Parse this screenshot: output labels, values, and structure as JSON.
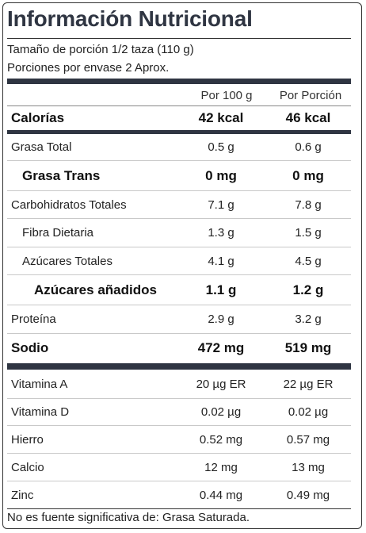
{
  "title": "Información Nutricional",
  "serving_size": "Tamaño de porción 1/2 taza (110 g)",
  "servings_per_container": "Porciones por envase 2 Aprox.",
  "headers": {
    "per_100g": "Por 100 g",
    "per_serving": "Por Porción"
  },
  "calories": {
    "label": "Calorías",
    "per_100g": "42 kcal",
    "per_serving": "46 kcal"
  },
  "nutrients": [
    {
      "label": "Grasa Total",
      "per_100g": "0.5 g",
      "per_serving": "0.6 g"
    },
    {
      "label": "Grasa Trans",
      "per_100g": "0 mg",
      "per_serving": "0 mg"
    },
    {
      "label": "Carbohidratos Totales",
      "per_100g": "7.1 g",
      "per_serving": "7.8 g"
    },
    {
      "label": "Fibra Dietaria",
      "per_100g": "1.3 g",
      "per_serving": "1.5 g"
    },
    {
      "label": "Azúcares Totales",
      "per_100g": "4.1 g",
      "per_serving": "4.5 g"
    },
    {
      "label": "Azúcares añadidos",
      "per_100g": "1.1 g",
      "per_serving": "1.2 g"
    },
    {
      "label": "Proteína",
      "per_100g": "2.9 g",
      "per_serving": "3.2 g"
    },
    {
      "label": "Sodio",
      "per_100g": "472 mg",
      "per_serving": "519 mg"
    }
  ],
  "micronutrients": [
    {
      "label": "Vitamina A",
      "per_100g": "20 µg ER",
      "per_serving": "22 µg ER"
    },
    {
      "label": "Vitamina D",
      "per_100g": "0.02 µg",
      "per_serving": "0.02 µg"
    },
    {
      "label": "Hierro",
      "per_100g": "0.52 mg",
      "per_serving": "0.57 mg"
    },
    {
      "label": "Calcio",
      "per_100g": "12 mg",
      "per_serving": "13 mg"
    },
    {
      "label": "Zinc",
      "per_100g": "0.44 mg",
      "per_serving": "0.49 mg"
    }
  ],
  "footer": "No es fuente significativa de: Grasa Saturada."
}
